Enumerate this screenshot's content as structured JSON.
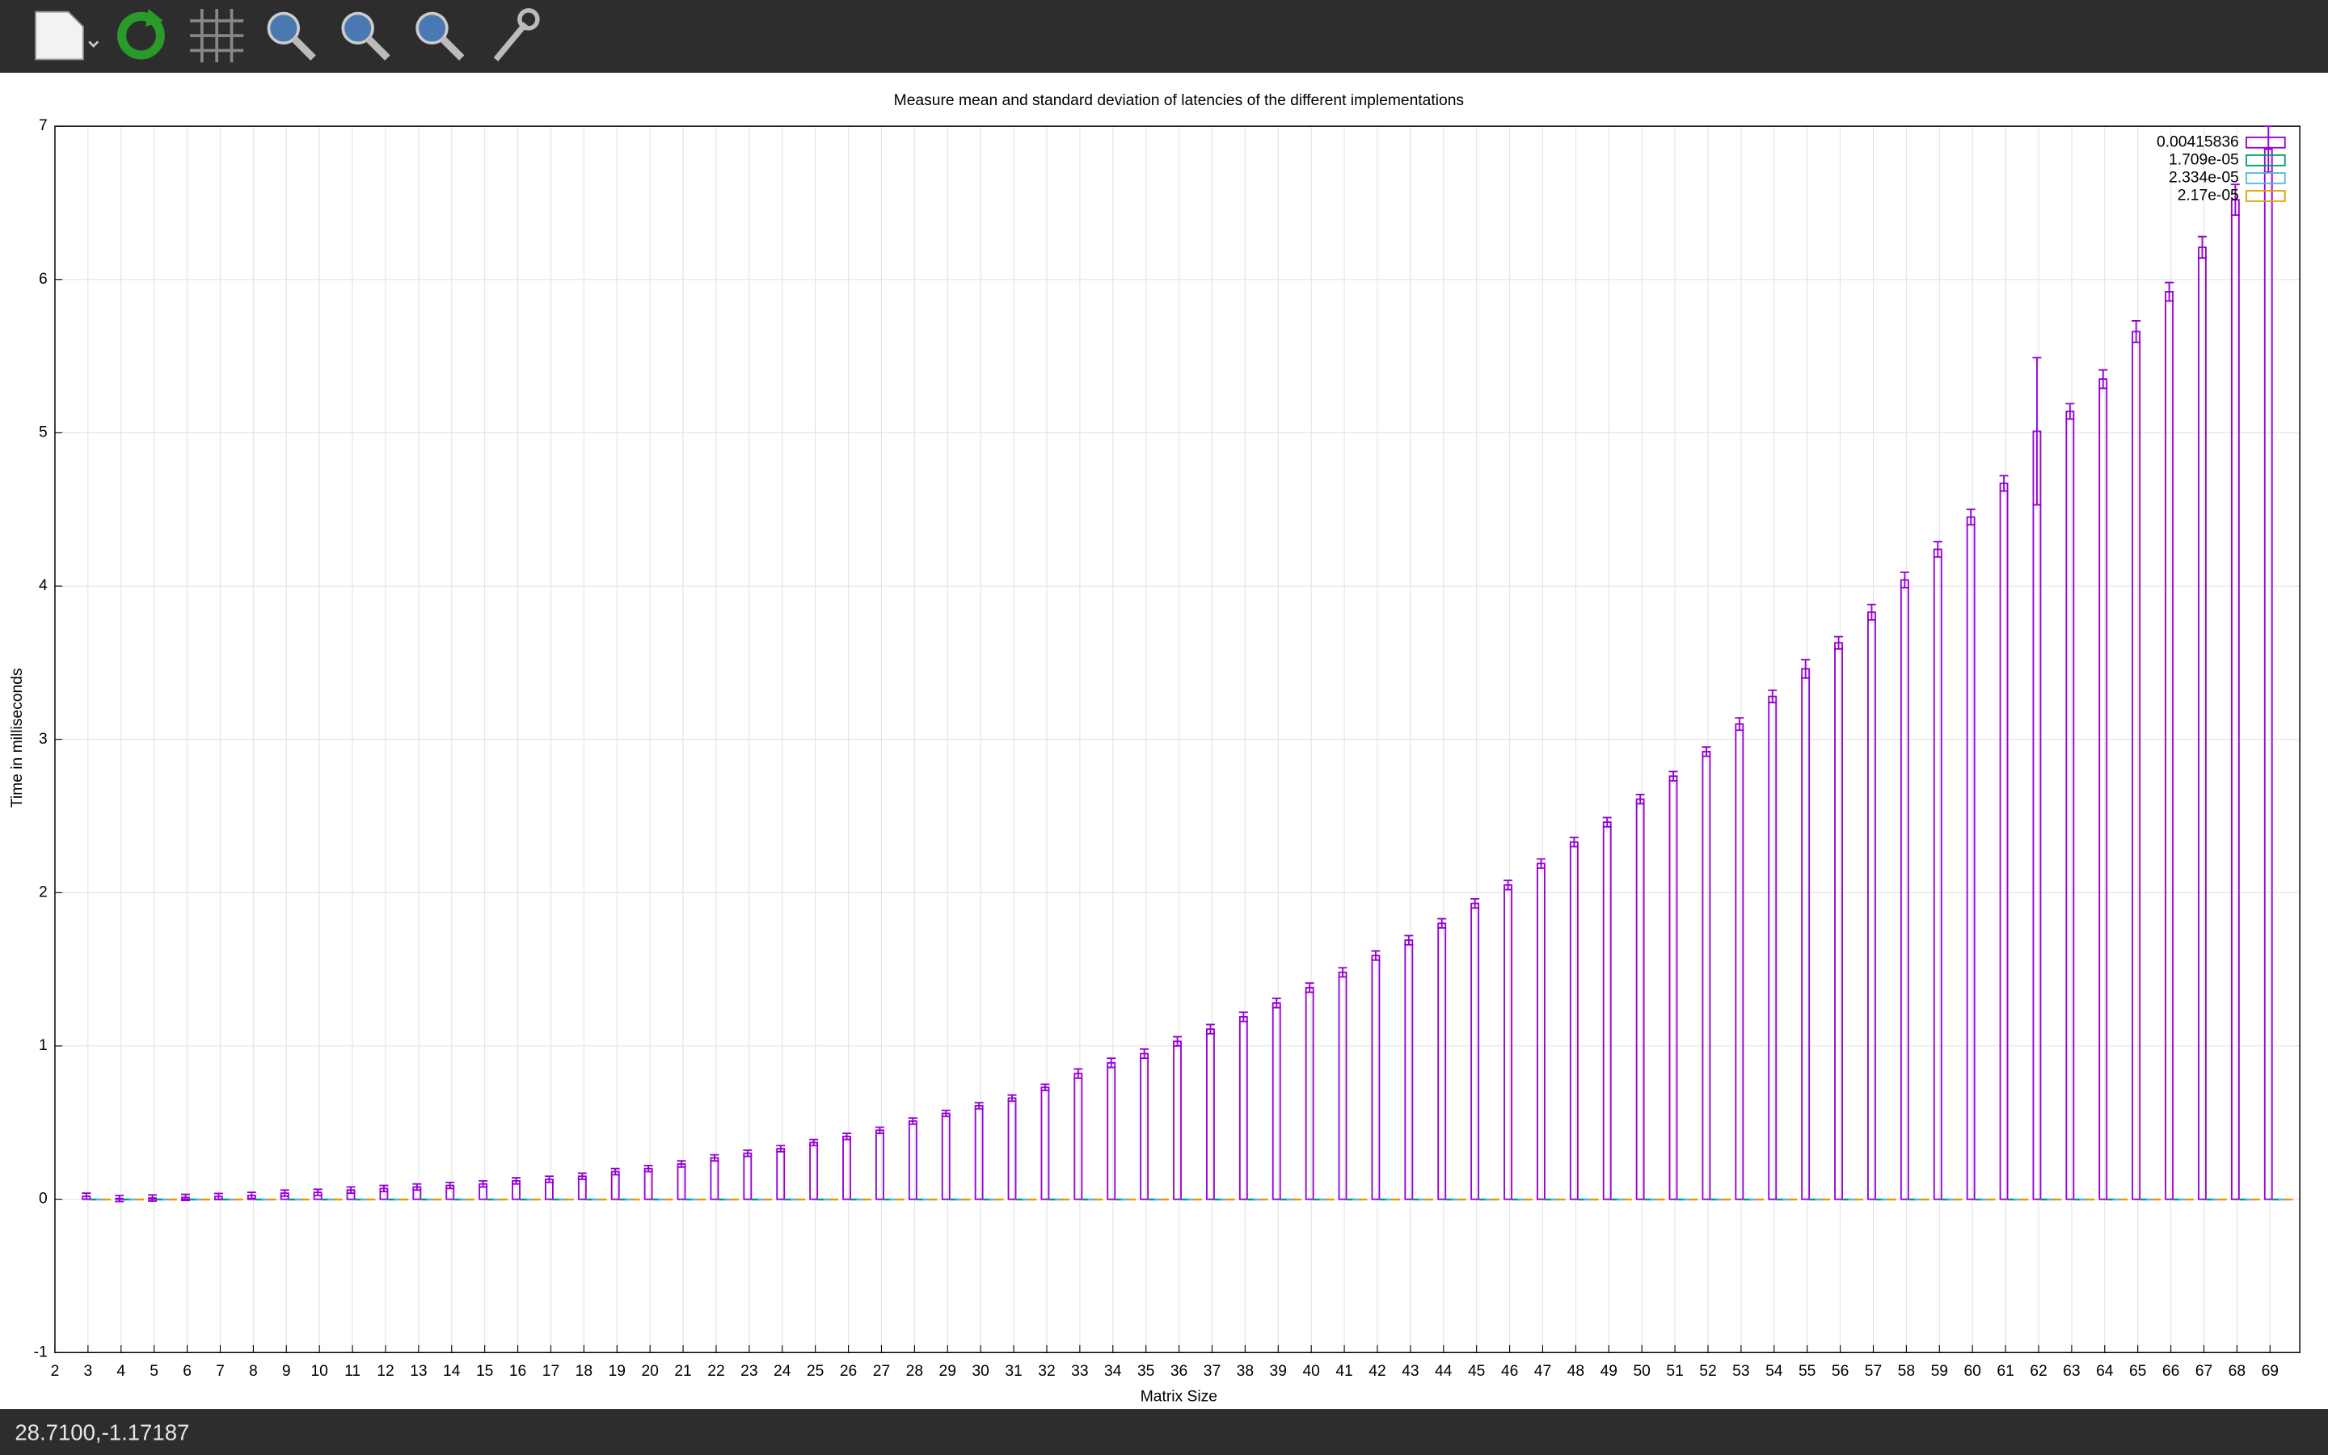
{
  "chart_data": {
    "type": "bar",
    "title": "Measure mean and standard deviation of latencies of the different implementations",
    "xlabel": "Matrix Size",
    "ylabel": "Time in milliseconds",
    "x": [
      3,
      4,
      5,
      6,
      7,
      8,
      9,
      10,
      11,
      12,
      13,
      14,
      15,
      16,
      17,
      18,
      19,
      20,
      21,
      22,
      23,
      24,
      25,
      26,
      27,
      28,
      29,
      30,
      31,
      32,
      33,
      34,
      35,
      36,
      37,
      38,
      39,
      40,
      41,
      42,
      43,
      44,
      45,
      46,
      47,
      48,
      49,
      50,
      51,
      52,
      53,
      54,
      55,
      56,
      57,
      58,
      59,
      60,
      61,
      62,
      63,
      64,
      65,
      66,
      67,
      68,
      69
    ],
    "xlim": [
      2,
      69.9
    ],
    "xticks": [
      2,
      3,
      4,
      5,
      6,
      7,
      8,
      9,
      10,
      11,
      12,
      13,
      14,
      15,
      16,
      17,
      18,
      19,
      20,
      21,
      22,
      23,
      24,
      25,
      26,
      27,
      28,
      29,
      30,
      31,
      32,
      33,
      34,
      35,
      36,
      37,
      38,
      39,
      40,
      41,
      42,
      43,
      44,
      45,
      46,
      47,
      48,
      49,
      50,
      51,
      52,
      53,
      54,
      55,
      56,
      57,
      58,
      59,
      60,
      61,
      62,
      63,
      64,
      65,
      66,
      67,
      68,
      69
    ],
    "ylim": [
      -1,
      7
    ],
    "yticks": [
      -1,
      0,
      1,
      2,
      3,
      4,
      5,
      6,
      7
    ],
    "grid": true,
    "legend": "top right",
    "series": [
      {
        "name": "0.00415836",
        "color": "#9400d3",
        "values": [
          0.02,
          0.005,
          0.008,
          0.012,
          0.018,
          0.025,
          0.04,
          0.045,
          0.06,
          0.07,
          0.08,
          0.09,
          0.1,
          0.12,
          0.13,
          0.15,
          0.18,
          0.2,
          0.23,
          0.27,
          0.3,
          0.33,
          0.37,
          0.41,
          0.45,
          0.51,
          0.56,
          0.61,
          0.66,
          0.73,
          0.82,
          0.89,
          0.95,
          1.03,
          1.11,
          1.19,
          1.28,
          1.38,
          1.48,
          1.59,
          1.69,
          1.8,
          1.93,
          2.05,
          2.19,
          2.33,
          2.46,
          2.61,
          2.76,
          2.92,
          3.1,
          3.28,
          3.46,
          3.63,
          3.83,
          4.04,
          4.24,
          4.45,
          4.67,
          5.01,
          5.14,
          5.35,
          5.66,
          5.92,
          6.21,
          6.52,
          6.85
        ],
        "errors": [
          0.02,
          0.02,
          0.02,
          0.02,
          0.02,
          0.02,
          0.02,
          0.02,
          0.02,
          0.02,
          0.02,
          0.02,
          0.02,
          0.02,
          0.02,
          0.02,
          0.02,
          0.02,
          0.02,
          0.02,
          0.02,
          0.02,
          0.02,
          0.02,
          0.02,
          0.02,
          0.02,
          0.02,
          0.02,
          0.02,
          0.03,
          0.03,
          0.03,
          0.03,
          0.03,
          0.03,
          0.03,
          0.03,
          0.03,
          0.03,
          0.03,
          0.03,
          0.03,
          0.03,
          0.03,
          0.03,
          0.03,
          0.03,
          0.03,
          0.03,
          0.04,
          0.04,
          0.06,
          0.04,
          0.05,
          0.05,
          0.05,
          0.05,
          0.05,
          0.48,
          0.05,
          0.06,
          0.07,
          0.06,
          0.07,
          0.1,
          0.15
        ]
      },
      {
        "name": "1.709e-05",
        "color": "#009e73",
        "values": [
          0,
          0,
          0,
          0,
          0,
          0,
          0,
          0,
          0,
          0,
          0,
          0,
          0,
          0,
          0,
          0,
          0,
          0,
          0,
          0,
          0,
          0,
          0,
          0,
          0,
          0,
          0,
          0,
          0,
          0,
          0,
          0,
          0,
          0,
          0,
          0,
          0,
          0,
          0,
          0,
          0,
          0,
          0,
          0,
          0,
          0,
          0,
          0,
          0,
          0,
          0,
          0,
          0,
          0,
          0,
          0,
          0,
          0,
          0,
          0,
          0,
          0,
          0,
          0,
          0,
          0,
          0
        ]
      },
      {
        "name": "2.334e-05",
        "color": "#56b4e9",
        "values": [
          0,
          0,
          0,
          0,
          0,
          0,
          0,
          0,
          0,
          0,
          0,
          0,
          0,
          0,
          0,
          0,
          0,
          0,
          0,
          0,
          0,
          0,
          0,
          0,
          0,
          0,
          0,
          0,
          0,
          0,
          0,
          0,
          0,
          0,
          0,
          0,
          0,
          0,
          0,
          0,
          0,
          0,
          0,
          0,
          0,
          0,
          0,
          0,
          0,
          0,
          0,
          0,
          0,
          0,
          0,
          0,
          0,
          0,
          0,
          0,
          0,
          0,
          0,
          0,
          0,
          0,
          0
        ]
      },
      {
        "name": "2.17e-05",
        "color": "#e69f00",
        "values": [
          0,
          0,
          0,
          0,
          0,
          0,
          0,
          0,
          0,
          0,
          0,
          0,
          0,
          0,
          0,
          0,
          0,
          0,
          0,
          0,
          0,
          0,
          0,
          0,
          0,
          0,
          0,
          0,
          0,
          0,
          0,
          0,
          0,
          0,
          0,
          0,
          0,
          0,
          0,
          0,
          0,
          0,
          0,
          0,
          0,
          0,
          0,
          0,
          0,
          0,
          0,
          0,
          0,
          0,
          0,
          0,
          0,
          0,
          0,
          0,
          0,
          0,
          0,
          0,
          0,
          0,
          0
        ]
      }
    ]
  },
  "status_bar": "28.7100,-1.17187"
}
